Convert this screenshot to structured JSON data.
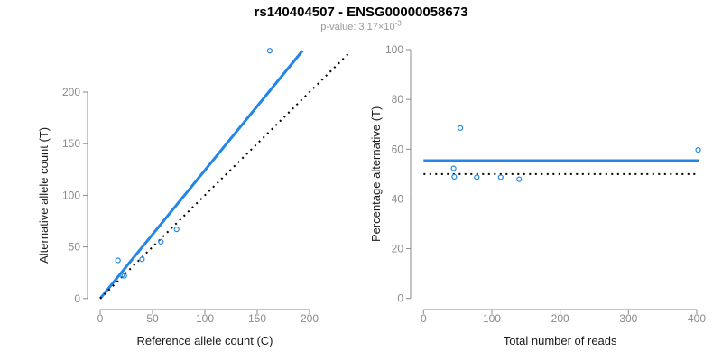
{
  "title": "rs140404507 - ENSG00000058673",
  "subtitle": {
    "text": "p-value: 3.17×10",
    "exponent": "-3"
  },
  "colors": {
    "accent_blue": "#2386E7",
    "null_black": "#000000",
    "axis_gray": "#8a8a8a",
    "tick_label_gray": "#8a8a8a",
    "axis_title": "#1a1a1a",
    "subtitle_gray": "#979797",
    "title_color": "#000000"
  },
  "chart_data": [
    {
      "name": "allele-counts",
      "type": "scatter",
      "xlabel": "Reference allele count (C)",
      "ylabel": "Alternative allele count (T)",
      "xlim": [
        0,
        237
      ],
      "ylim": [
        0,
        240
      ],
      "xticks": [
        0,
        50,
        100,
        150,
        200
      ],
      "yticks": [
        0,
        50,
        100,
        150,
        200
      ],
      "grid": false,
      "points": [
        [
          17,
          37
        ],
        [
          21,
          23
        ],
        [
          23,
          22
        ],
        [
          40,
          38
        ],
        [
          58,
          55
        ],
        [
          73,
          67
        ],
        [
          162,
          240
        ]
      ],
      "lines": [
        {
          "name": "fitted-allelic-ratio-line",
          "style": "solid",
          "color": "blue",
          "slope": 1.242,
          "intercept": 0
        },
        {
          "name": "identity-line",
          "style": "dotted",
          "color": "black",
          "slope": 1,
          "intercept": 0
        }
      ]
    },
    {
      "name": "percentage-vs-reads",
      "type": "scatter",
      "xlabel": "Total number of reads",
      "ylabel": "Percentage alternative (T)",
      "xlim": [
        0,
        404
      ],
      "ylim": [
        0,
        100
      ],
      "xticks": [
        0,
        100,
        200,
        300,
        400
      ],
      "yticks": [
        0,
        20,
        40,
        60,
        80,
        100
      ],
      "grid": false,
      "points": [
        [
          54,
          68.5
        ],
        [
          44,
          52.3
        ],
        [
          45,
          48.9
        ],
        [
          78,
          48.7
        ],
        [
          113,
          48.7
        ],
        [
          140,
          47.9
        ],
        [
          402,
          59.7
        ]
      ],
      "lines": [
        {
          "name": "fitted-percentage-line",
          "style": "solid",
          "color": "blue",
          "y": 55.4
        },
        {
          "name": "null-50-percent-line",
          "style": "dotted",
          "color": "black",
          "y": 50
        }
      ]
    }
  ]
}
